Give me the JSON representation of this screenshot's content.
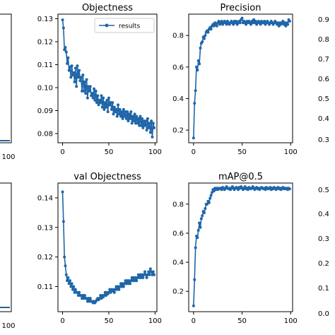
{
  "chart_data": [
    {
      "type": "line",
      "title": "Objectness",
      "legend": {
        "placement": "top-right",
        "entries": [
          "results"
        ]
      },
      "xlim": [
        -5,
        102
      ],
      "ylim": [
        0.076,
        0.132
      ],
      "xticks": [
        "0",
        "50",
        "100"
      ],
      "yticks": [
        "0.08",
        "0.09",
        "0.10",
        "0.11",
        "0.12",
        "0.13"
      ],
      "series": [
        {
          "name": "results",
          "x": [
            0,
            1,
            2,
            3,
            4,
            5,
            6,
            7,
            8,
            9,
            10,
            11,
            12,
            13,
            14,
            15,
            16,
            17,
            18,
            19,
            20,
            21,
            22,
            23,
            24,
            25,
            26,
            27,
            28,
            29,
            30,
            31,
            32,
            33,
            34,
            35,
            36,
            37,
            38,
            39,
            40,
            41,
            42,
            43,
            44,
            45,
            46,
            47,
            48,
            49,
            50,
            51,
            52,
            53,
            54,
            55,
            56,
            57,
            58,
            59,
            60,
            61,
            62,
            63,
            64,
            65,
            66,
            67,
            68,
            69,
            70,
            71,
            72,
            73,
            74,
            75,
            76,
            77,
            78,
            79,
            80,
            81,
            82,
            83,
            84,
            85,
            86,
            87,
            88,
            89,
            90,
            91,
            92,
            93,
            94,
            95,
            96,
            97,
            98,
            99
          ],
          "y": [
            0.1295,
            0.126,
            0.1165,
            0.1175,
            0.1155,
            0.1105,
            0.113,
            0.1075,
            0.109,
            0.1045,
            0.1095,
            0.1055,
            0.1065,
            0.1025,
            0.1085,
            0.1005,
            0.1095,
            0.1045,
            0.1075,
            0.103,
            0.1045,
            0.0985,
            0.1055,
            0.0985,
            0.1025,
            0.0975,
            0.1035,
            0.0955,
            0.1005,
            0.0985,
            0.1005,
            0.0965,
            0.0975,
            0.0955,
            0.0995,
            0.0945,
            0.0985,
            0.0935,
            0.0965,
            0.0925,
            0.0945,
            0.0935,
            0.0965,
            0.0915,
            0.0955,
            0.0905,
            0.0935,
            0.0915,
            0.0945,
            0.0895,
            0.0955,
            0.0925,
            0.0935,
            0.0905,
            0.0935,
            0.0885,
            0.0915,
            0.0895,
            0.0905,
            0.0875,
            0.0925,
            0.0885,
            0.0905,
            0.0875,
            0.0895,
            0.0865,
            0.0905,
            0.0875,
            0.0895,
            0.0865,
            0.0895,
            0.0855,
            0.0885,
            0.0865,
            0.0895,
            0.0845,
            0.0875,
            0.0855,
            0.0885,
            0.0845,
            0.0875,
            0.0845,
            0.0865,
            0.0835,
            0.0875,
            0.0835,
            0.0865,
            0.0825,
            0.0855,
            0.0835,
            0.0855,
            0.0815,
            0.0865,
            0.0825,
            0.0845,
            0.0805,
            0.0855,
            0.0785,
            0.0845,
            0.0825
          ]
        }
      ]
    },
    {
      "type": "line",
      "title": "Precision",
      "xlim": [
        -5,
        102
      ],
      "ylim": [
        0.12,
        0.935
      ],
      "xticks": [
        "0",
        "50",
        "100"
      ],
      "yticks": [
        "0.2",
        "0.4",
        "0.6",
        "0.8"
      ],
      "series": [
        {
          "x": [
            0,
            1,
            2,
            3,
            4,
            5,
            6,
            7,
            8,
            9,
            10,
            11,
            12,
            13,
            14,
            15,
            16,
            17,
            18,
            19,
            20,
            21,
            22,
            23,
            24,
            25,
            26,
            27,
            28,
            29,
            30,
            31,
            32,
            33,
            34,
            35,
            36,
            37,
            38,
            39,
            40,
            41,
            42,
            43,
            44,
            45,
            46,
            47,
            48,
            49,
            50,
            51,
            52,
            53,
            54,
            55,
            56,
            57,
            58,
            59,
            60,
            61,
            62,
            63,
            64,
            65,
            66,
            67,
            68,
            69,
            70,
            71,
            72,
            73,
            74,
            75,
            76,
            77,
            78,
            79,
            80,
            81,
            82,
            83,
            84,
            85,
            86,
            87,
            88,
            89,
            90,
            91,
            92,
            93,
            94,
            95,
            96,
            97,
            98,
            99
          ],
          "y": [
            0.15,
            0.37,
            0.45,
            0.6,
            0.58,
            0.64,
            0.62,
            0.72,
            0.75,
            0.76,
            0.79,
            0.78,
            0.8,
            0.82,
            0.83,
            0.82,
            0.84,
            0.85,
            0.84,
            0.86,
            0.87,
            0.86,
            0.88,
            0.87,
            0.86,
            0.88,
            0.89,
            0.87,
            0.88,
            0.89,
            0.87,
            0.88,
            0.89,
            0.88,
            0.87,
            0.89,
            0.88,
            0.87,
            0.88,
            0.89,
            0.88,
            0.87,
            0.89,
            0.88,
            0.89,
            0.87,
            0.88,
            0.89,
            0.88,
            0.9,
            0.91,
            0.88,
            0.89,
            0.88,
            0.87,
            0.89,
            0.88,
            0.89,
            0.88,
            0.87,
            0.89,
            0.88,
            0.9,
            0.88,
            0.89,
            0.87,
            0.88,
            0.89,
            0.88,
            0.87,
            0.89,
            0.88,
            0.88,
            0.89,
            0.87,
            0.88,
            0.89,
            0.88,
            0.87,
            0.88,
            0.89,
            0.88,
            0.87,
            0.88,
            0.89,
            0.88,
            0.87,
            0.88,
            0.86,
            0.88,
            0.87,
            0.88,
            0.89,
            0.87,
            0.88,
            0.86,
            0.88,
            0.87,
            0.9,
            0.89
          ]
        }
      ]
    },
    {
      "type": "line",
      "title": "val Objectness",
      "xlim": [
        -5,
        102
      ],
      "ylim": [
        0.1015,
        0.145
      ],
      "xticks": [
        "0",
        "50",
        "100"
      ],
      "yticks": [
        "0.11",
        "0.12",
        "0.13",
        "0.14"
      ],
      "series": [
        {
          "x": [
            0,
            1,
            2,
            3,
            4,
            5,
            6,
            7,
            8,
            9,
            10,
            11,
            12,
            13,
            14,
            15,
            16,
            17,
            18,
            19,
            20,
            21,
            22,
            23,
            24,
            25,
            26,
            27,
            28,
            29,
            30,
            31,
            32,
            33,
            34,
            35,
            36,
            37,
            38,
            39,
            40,
            41,
            42,
            43,
            44,
            45,
            46,
            47,
            48,
            49,
            50,
            51,
            52,
            53,
            54,
            55,
            56,
            57,
            58,
            59,
            60,
            61,
            62,
            63,
            64,
            65,
            66,
            67,
            68,
            69,
            70,
            71,
            72,
            73,
            74,
            75,
            76,
            77,
            78,
            79,
            80,
            81,
            82,
            83,
            84,
            85,
            86,
            87,
            88,
            89,
            90,
            91,
            92,
            93,
            94,
            95,
            96,
            97,
            98,
            99
          ],
          "y": [
            0.142,
            0.132,
            0.12,
            0.117,
            0.114,
            0.112,
            0.113,
            0.111,
            0.112,
            0.11,
            0.111,
            0.109,
            0.11,
            0.108,
            0.109,
            0.108,
            0.108,
            0.107,
            0.108,
            0.107,
            0.107,
            0.106,
            0.107,
            0.106,
            0.107,
            0.106,
            0.106,
            0.105,
            0.106,
            0.105,
            0.106,
            0.105,
            0.105,
            0.1045,
            0.105,
            0.1045,
            0.105,
            0.1055,
            0.106,
            0.1055,
            0.106,
            0.107,
            0.106,
            0.107,
            0.1065,
            0.107,
            0.108,
            0.107,
            0.108,
            0.1075,
            0.108,
            0.109,
            0.108,
            0.109,
            0.1085,
            0.109,
            0.108,
            0.109,
            0.11,
            0.109,
            0.11,
            0.109,
            0.11,
            0.111,
            0.11,
            0.111,
            0.11,
            0.111,
            0.112,
            0.111,
            0.112,
            0.111,
            0.112,
            0.111,
            0.112,
            0.113,
            0.112,
            0.113,
            0.112,
            0.113,
            0.112,
            0.113,
            0.114,
            0.113,
            0.114,
            0.113,
            0.114,
            0.113,
            0.114,
            0.115,
            0.114,
            0.113,
            0.114,
            0.115,
            0.114,
            0.116,
            0.115,
            0.114,
            0.115,
            0.114
          ]
        }
      ]
    },
    {
      "type": "line",
      "title": "mAP@0.5",
      "xlim": [
        -5,
        102
      ],
      "ylim": [
        0.06,
        0.945
      ],
      "xticks": [
        "0",
        "50",
        "100"
      ],
      "yticks": [
        "0.2",
        "0.4",
        "0.6",
        "0.8"
      ],
      "series": [
        {
          "x": [
            0,
            1,
            2,
            3,
            4,
            5,
            6,
            7,
            8,
            9,
            10,
            11,
            12,
            13,
            14,
            15,
            16,
            17,
            18,
            19,
            20,
            21,
            22,
            23,
            24,
            25,
            26,
            27,
            28,
            29,
            30,
            31,
            32,
            33,
            34,
            35,
            36,
            37,
            38,
            39,
            40,
            41,
            42,
            43,
            44,
            45,
            46,
            47,
            48,
            49,
            50,
            51,
            52,
            53,
            54,
            55,
            56,
            57,
            58,
            59,
            60,
            61,
            62,
            63,
            64,
            65,
            66,
            67,
            68,
            69,
            70,
            71,
            72,
            73,
            74,
            75,
            76,
            77,
            78,
            79,
            80,
            81,
            82,
            83,
            84,
            85,
            86,
            87,
            88,
            89,
            90,
            91,
            92,
            93,
            94,
            95,
            96,
            97,
            98,
            99
          ],
          "y": [
            0.1,
            0.28,
            0.5,
            0.58,
            0.57,
            0.62,
            0.67,
            0.64,
            0.7,
            0.72,
            0.75,
            0.74,
            0.77,
            0.8,
            0.8,
            0.82,
            0.81,
            0.84,
            0.86,
            0.88,
            0.9,
            0.89,
            0.91,
            0.9,
            0.91,
            0.9,
            0.91,
            0.905,
            0.91,
            0.9,
            0.915,
            0.91,
            0.9,
            0.91,
            0.92,
            0.91,
            0.905,
            0.91,
            0.9,
            0.91,
            0.92,
            0.91,
            0.9,
            0.91,
            0.915,
            0.91,
            0.9,
            0.915,
            0.91,
            0.92,
            0.91,
            0.9,
            0.91,
            0.92,
            0.905,
            0.91,
            0.9,
            0.915,
            0.91,
            0.905,
            0.91,
            0.92,
            0.91,
            0.9,
            0.91,
            0.915,
            0.905,
            0.91,
            0.9,
            0.91,
            0.915,
            0.91,
            0.905,
            0.91,
            0.9,
            0.915,
            0.91,
            0.905,
            0.91,
            0.915,
            0.9,
            0.91,
            0.905,
            0.915,
            0.91,
            0.9,
            0.91,
            0.915,
            0.905,
            0.91,
            0.9,
            0.91,
            0.915,
            0.905,
            0.91,
            0.905,
            0.91,
            0.9,
            0.91,
            0.905
          ]
        }
      ]
    }
  ],
  "partial_panels": {
    "top_left": {
      "xtick": "100"
    },
    "bottom_left": {
      "xtick": "100"
    },
    "top_right": {
      "yticks": [
        "0.9",
        "0.8",
        "0.7",
        "0.6",
        "0.5",
        "0.4",
        "0.3"
      ]
    },
    "bottom_right": {
      "yticks": [
        "0.5",
        "0.4",
        "0.3",
        "0.2",
        "0.1",
        "0.0"
      ]
    }
  },
  "colors": {
    "line": "#1f66a8",
    "axes": "#000000",
    "background": "#ffffff"
  }
}
